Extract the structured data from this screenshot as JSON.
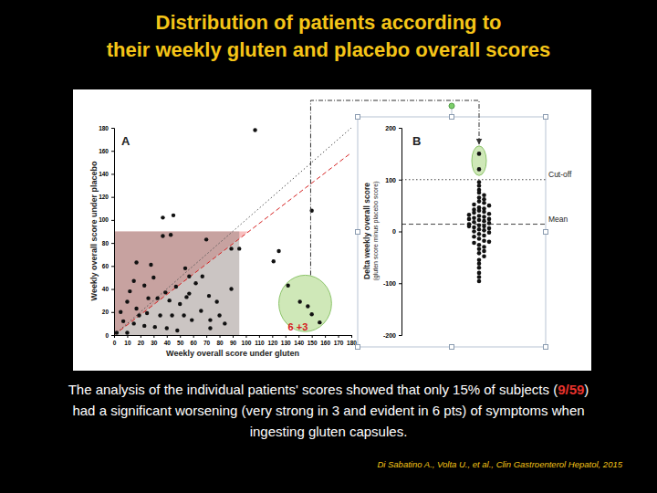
{
  "slide": {
    "title_lines": [
      "Distribution of patients according to",
      "their weekly gluten and placebo overall scores"
    ],
    "caption_lines": [
      [
        {
          "text": "The analysis of the individual patients' scores showed that only 15% of subjects ("
        },
        {
          "text": "9/59",
          "color": "#e8322c"
        },
        {
          "text": ")"
        }
      ],
      [
        {
          "text": "had a significant worsening (very strong in 3 and evident in 6 pts) of symptoms when"
        }
      ],
      [
        {
          "text": "ingesting gluten capsules."
        }
      ]
    ],
    "citation": "Di Sabatino A., Volta U., et al., Clin Gastroenterol Hepatol, 2015"
  },
  "chart_data": [
    {
      "type": "scatter",
      "label": "A",
      "xlabel": "Weekly overall score under gluten",
      "ylabel": "Weekly overall score under placebo",
      "x": [
        107,
        150,
        37,
        45,
        37,
        43,
        125,
        121,
        95,
        89,
        54,
        57,
        67,
        15,
        23,
        47,
        39,
        57,
        26,
        33,
        42,
        10,
        50,
        72,
        78,
        89,
        66,
        17,
        25,
        35,
        44,
        53,
        59,
        73,
        7,
        15,
        23,
        31,
        40,
        48,
        10,
        2,
        19,
        55,
        28,
        17,
        70,
        73,
        80,
        132,
        141,
        147,
        156,
        150,
        5,
        62,
        84,
        30,
        12
      ],
      "y": [
        178,
        108,
        102,
        104,
        86,
        87,
        73,
        64,
        75,
        75,
        58,
        51,
        51,
        47,
        43,
        42,
        37,
        36,
        32,
        32,
        30,
        29,
        27,
        34,
        29,
        40,
        21,
        23,
        19,
        17,
        17,
        17,
        13,
        13,
        12,
        10,
        8,
        7,
        6,
        4,
        2,
        2,
        17,
        33,
        61,
        63,
        83,
        6,
        17,
        43,
        29,
        25,
        11,
        18,
        20,
        45,
        10,
        50,
        38
      ],
      "color": "#111111",
      "marker": "circle",
      "xlim": [
        0,
        180
      ],
      "ylim": [
        0,
        180
      ],
      "xticks": [
        0,
        10,
        20,
        30,
        40,
        50,
        60,
        70,
        80,
        90,
        100,
        110,
        120,
        130,
        140,
        150,
        160,
        170,
        180
      ],
      "yticks": [
        0,
        20,
        40,
        60,
        80,
        100,
        120,
        140,
        160,
        180
      ],
      "reference_lines": [
        {
          "slope": 1,
          "intercept": 0,
          "color": "#555555",
          "line_style": "dotted"
        },
        {
          "slope": 0.88,
          "intercept": 0,
          "color": "#d62020",
          "line_style": "dashed"
        }
      ],
      "shaded_box": {
        "x": [
          0,
          95
        ],
        "y": [
          0,
          90
        ]
      },
      "pink_region": [
        [
          0,
          0
        ],
        [
          0,
          90
        ],
        [
          102,
          90
        ]
      ],
      "highlight_region": {
        "x": [
          125,
          165
        ],
        "y": [
          3,
          52
        ]
      },
      "annotation": "6 +3"
    },
    {
      "type": "beeswarm",
      "label": "B",
      "ylabel": "Delta weekly overall score",
      "ylabel_sub": "(gluten score minus placebo score)",
      "values": [
        95,
        88,
        80,
        75,
        70,
        65,
        62,
        58,
        55,
        52,
        50,
        46,
        44,
        42,
        40,
        38,
        36,
        34,
        32,
        30,
        28,
        26,
        24,
        22,
        20,
        18,
        16,
        14,
        12,
        10,
        8,
        6,
        4,
        2,
        0,
        -2,
        -5,
        -8,
        -10,
        -14,
        -18,
        -22,
        -26,
        -30,
        -34,
        -38,
        -42,
        -48,
        -55,
        -62,
        -70,
        -80,
        -88,
        -96,
        150,
        120,
        24,
        10,
        -20
      ],
      "color": "#111111",
      "marker": "circle",
      "ylim": [
        -200,
        200
      ],
      "yticks": [
        -200,
        -100,
        0,
        100,
        200
      ],
      "tick_labels": "y",
      "reference_lines": [
        {
          "name": "Cut-off",
          "value": 100,
          "line_style": "dotted"
        },
        {
          "name": "Mean",
          "value": 14,
          "line_style": "dashed"
        }
      ],
      "highlight_region": {
        "y": [
          108,
          165
        ]
      }
    }
  ]
}
